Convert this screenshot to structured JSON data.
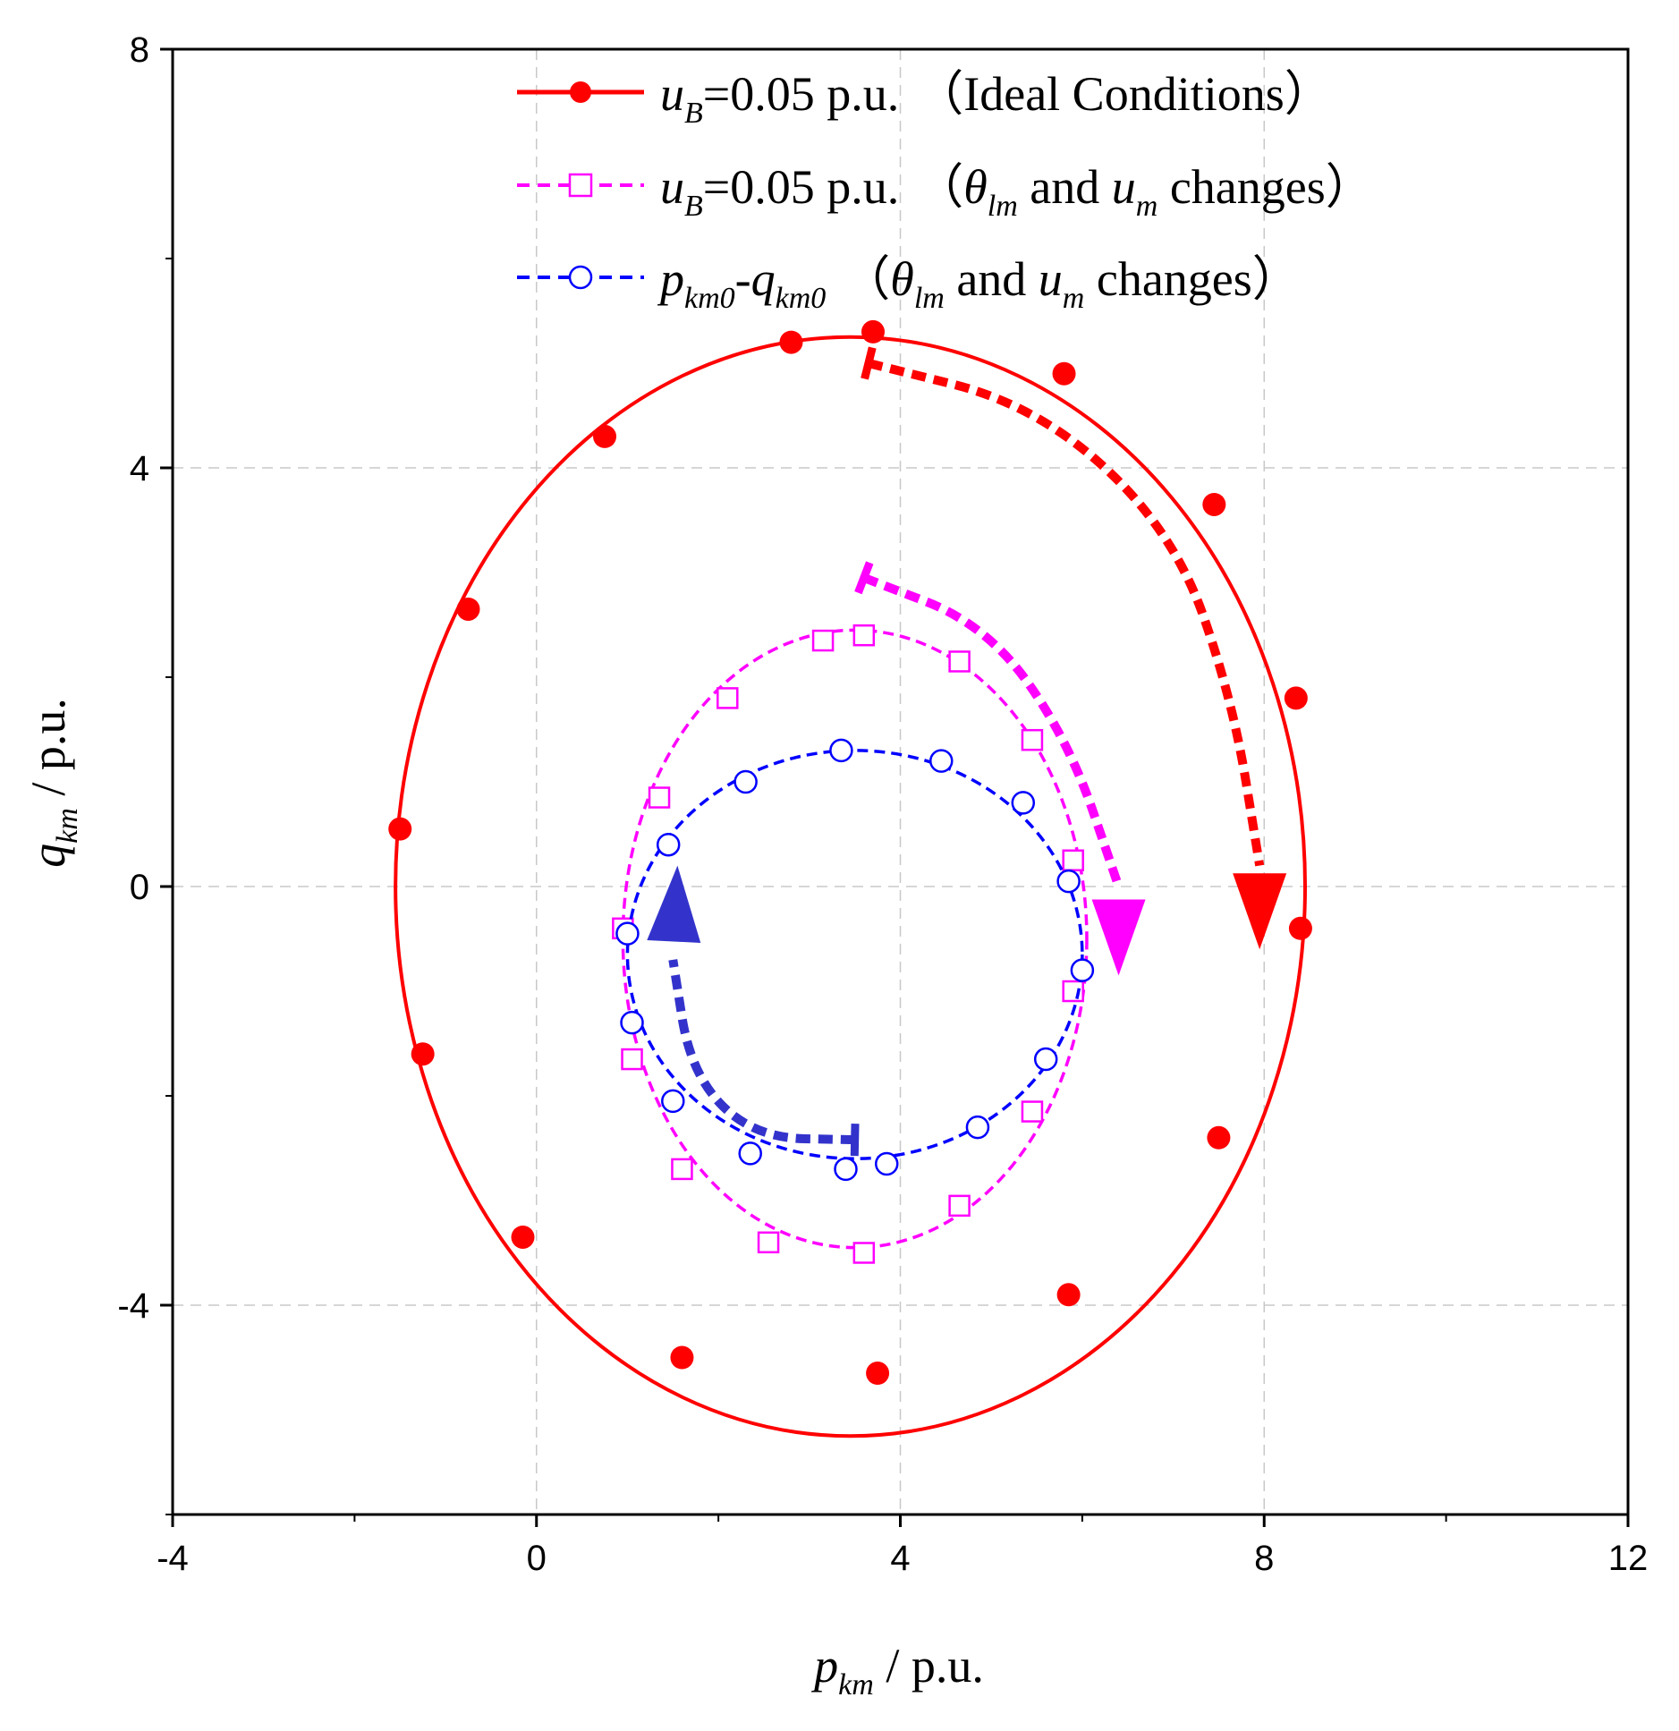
{
  "chart_data": {
    "type": "line",
    "xlabel": {
      "symbol": "p",
      "subscript": "km",
      "unit": " / p.u."
    },
    "ylabel": {
      "symbol": "q",
      "subscript": "km",
      "unit": " / p.u."
    },
    "xlim": [
      -4,
      12
    ],
    "ylim": [
      -6,
      8
    ],
    "x_ticks": [
      -4,
      0,
      4,
      8,
      12
    ],
    "x_tick_labels": [
      "-4",
      "0",
      "4",
      "8",
      "12"
    ],
    "y_ticks": [
      -4,
      0,
      4,
      8
    ],
    "y_tick_labels": [
      "-4",
      "0",
      "4",
      "8"
    ],
    "grid": true,
    "legend": {
      "position": "top",
      "entries": [
        {
          "sym": "u",
          "sub": "B",
          "mid": "=0.05 p.u.",
          "paren_open": "（",
          "paren_text": "Ideal Conditions",
          "paren_close": "）"
        },
        {
          "sym": "u",
          "sub": "B",
          "mid": "=0.05 p.u.",
          "paren_open": "（",
          "theta": "θ",
          "theta_sub": "lm",
          "and": " and ",
          "u2": "u",
          "u2_sub": "m",
          "rest": " changes",
          "paren_close": "）"
        },
        {
          "p": "p",
          "p_sub": "km0",
          "dash": "-",
          "q": "q",
          "q_sub": "km0",
          "paren_open": "（",
          "theta": "θ",
          "theta_sub": "lm",
          "and": " and ",
          "u2": "u",
          "u2_sub": "m",
          "rest": " changes",
          "paren_close": "）"
        }
      ]
    },
    "series": [
      {
        "name": "uB=0.05 p.u. (Ideal Conditions)",
        "color": "#ff0000",
        "line_style": "solid",
        "marker": "filled-circle",
        "ellipse": {
          "cx": 3.45,
          "cy": 0.0,
          "rx": 5.0,
          "ry": 5.25,
          "top_offset": 0.0
        },
        "markers": [
          [
            3.7,
            5.3
          ],
          [
            5.8,
            4.9
          ],
          [
            7.45,
            3.65
          ],
          [
            8.35,
            1.8
          ],
          [
            8.4,
            -0.4
          ],
          [
            7.5,
            -2.4
          ],
          [
            5.85,
            -3.9
          ],
          [
            3.75,
            -4.65
          ],
          [
            1.6,
            -4.5
          ],
          [
            -0.15,
            -3.35
          ],
          [
            -1.25,
            -1.6
          ],
          [
            -1.5,
            0.55
          ],
          [
            -0.75,
            2.65
          ],
          [
            0.75,
            4.3
          ],
          [
            2.8,
            5.2
          ]
        ]
      },
      {
        "name": "uB=0.05 p.u. (θlm and um changes)",
        "color": "#ff00ff",
        "line_style": "dashed",
        "marker": "open-square",
        "ellipse": {
          "cx": 3.5,
          "cy": -0.5,
          "rx": 2.55,
          "ry": 2.95
        },
        "markers": [
          [
            3.6,
            2.4
          ],
          [
            4.65,
            2.15
          ],
          [
            5.45,
            1.4
          ],
          [
            5.9,
            0.25
          ],
          [
            5.9,
            -1.0
          ],
          [
            5.45,
            -2.15
          ],
          [
            4.65,
            -3.05
          ],
          [
            3.6,
            -3.5
          ],
          [
            2.55,
            -3.4
          ],
          [
            1.6,
            -2.7
          ],
          [
            1.05,
            -1.65
          ],
          [
            0.95,
            -0.4
          ],
          [
            1.35,
            0.85
          ],
          [
            2.1,
            1.8
          ],
          [
            3.15,
            2.35
          ]
        ]
      },
      {
        "name": "pkm0-qkm0 (θlm and um changes)",
        "color": "#0000ff",
        "line_style": "dashed",
        "marker": "open-circle",
        "ellipse": {
          "cx": 3.5,
          "cy": -0.65,
          "rx": 2.5,
          "ry": 1.95
        },
        "markers": [
          [
            3.35,
            1.3
          ],
          [
            4.45,
            1.2
          ],
          [
            5.35,
            0.8
          ],
          [
            5.85,
            0.05
          ],
          [
            6.0,
            -0.8
          ],
          [
            5.6,
            -1.65
          ],
          [
            4.85,
            -2.3
          ],
          [
            3.85,
            -2.65
          ],
          [
            3.4,
            -2.7
          ],
          [
            2.35,
            -2.55
          ],
          [
            1.5,
            -2.05
          ],
          [
            1.05,
            -1.3
          ],
          [
            1.0,
            -0.45
          ],
          [
            1.45,
            0.4
          ],
          [
            2.3,
            1.0
          ]
        ]
      }
    ],
    "annotations": [
      {
        "type": "direction-arrow",
        "color": "#ff0000",
        "path": [
          [
            3.65,
            5.0
          ],
          [
            5.5,
            4.6
          ],
          [
            7.0,
            3.4
          ],
          [
            7.65,
            1.8
          ],
          [
            7.95,
            0.2
          ]
        ],
        "head_at": [
          7.95,
          -0.6
        ]
      },
      {
        "type": "direction-arrow",
        "color": "#ff00ff",
        "path": [
          [
            3.6,
            2.95
          ],
          [
            4.95,
            2.5
          ],
          [
            5.85,
            1.4
          ],
          [
            6.4,
            0.0
          ]
        ],
        "head_at": [
          6.4,
          -0.85
        ]
      },
      {
        "type": "direction-arrow",
        "color": "#3333cc",
        "path": [
          [
            3.5,
            -2.42
          ],
          [
            2.4,
            -2.4
          ],
          [
            1.7,
            -1.8
          ],
          [
            1.5,
            -0.7
          ]
        ],
        "head_at": [
          1.55,
          0.2
        ]
      }
    ]
  }
}
